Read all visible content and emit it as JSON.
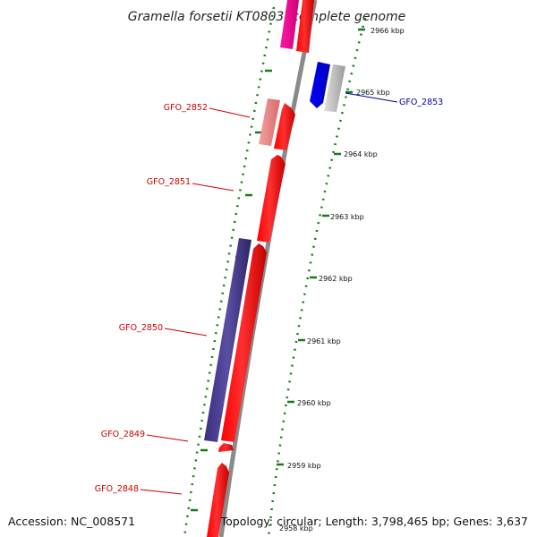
{
  "title": "Gramella forsetii KT0803, complete genome",
  "footer": {
    "accession": "Accession: NC_008571",
    "topology": "Topology: circular; Length: 3,798,465 bp; Genes: 3,637"
  },
  "scale_ticks": [
    "2966 kbp",
    "2965 kbp",
    "2964 kbp",
    "2963 kbp",
    "2962 kbp",
    "2961 kbp",
    "2960 kbp",
    "2959 kbp",
    "2958 kbp"
  ],
  "gene_labels": [
    "GFO_2853",
    "GFO_2852",
    "GFO_2851",
    "GFO_2850",
    "GFO_2849",
    "GFO_2848"
  ],
  "colors": {
    "forward_cds": "#ff0000",
    "reverse_cds": "#4b3f8f",
    "pink_cds": "#ff1aa6",
    "salmon_cds": "#f08080",
    "blue_cds": "#0000ff",
    "grey_cds": "#c0c0c0",
    "backbone": "#8a8a8a",
    "ruler_dots": "#1a7a1a",
    "label_red": "#cc0000",
    "label_blue": "#0000aa"
  }
}
